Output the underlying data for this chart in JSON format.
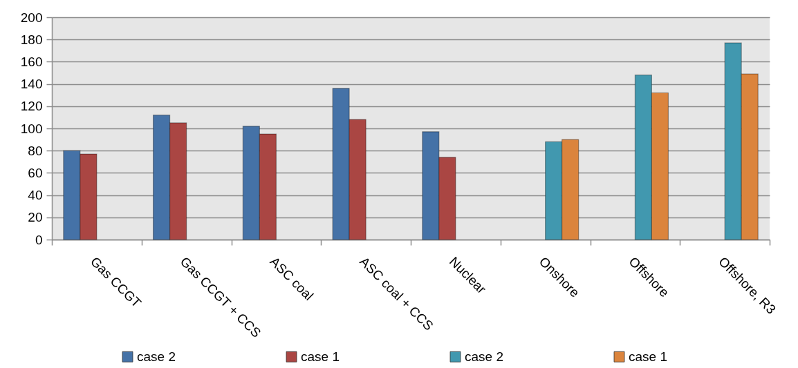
{
  "chart_data": {
    "type": "bar",
    "categories": [
      "Gas CCGT",
      "Gas CCGT + CCS",
      "ASC coal",
      "ASC coal + CCS",
      "Nuclear",
      "Onshore",
      "Offshore",
      "Offshore, R3"
    ],
    "series": [
      {
        "name": "case 2",
        "color": "#4572a7",
        "values": [
          80,
          112,
          102,
          136,
          97,
          null,
          null,
          null
        ]
      },
      {
        "name": "case 1",
        "color": "#aa4643",
        "values": [
          77,
          105,
          95,
          108,
          74,
          null,
          null,
          null
        ]
      },
      {
        "name": "case 2",
        "color": "#4198af",
        "values": [
          null,
          null,
          null,
          null,
          null,
          88,
          148,
          177
        ]
      },
      {
        "name": "case 1",
        "color": "#db843d",
        "values": [
          null,
          null,
          null,
          null,
          null,
          90,
          132,
          149
        ]
      }
    ],
    "ylim": [
      0,
      200
    ],
    "yticks": [
      0,
      20,
      40,
      60,
      80,
      100,
      120,
      140,
      160,
      180,
      200
    ],
    "grid": "y",
    "legend": "bottom"
  }
}
